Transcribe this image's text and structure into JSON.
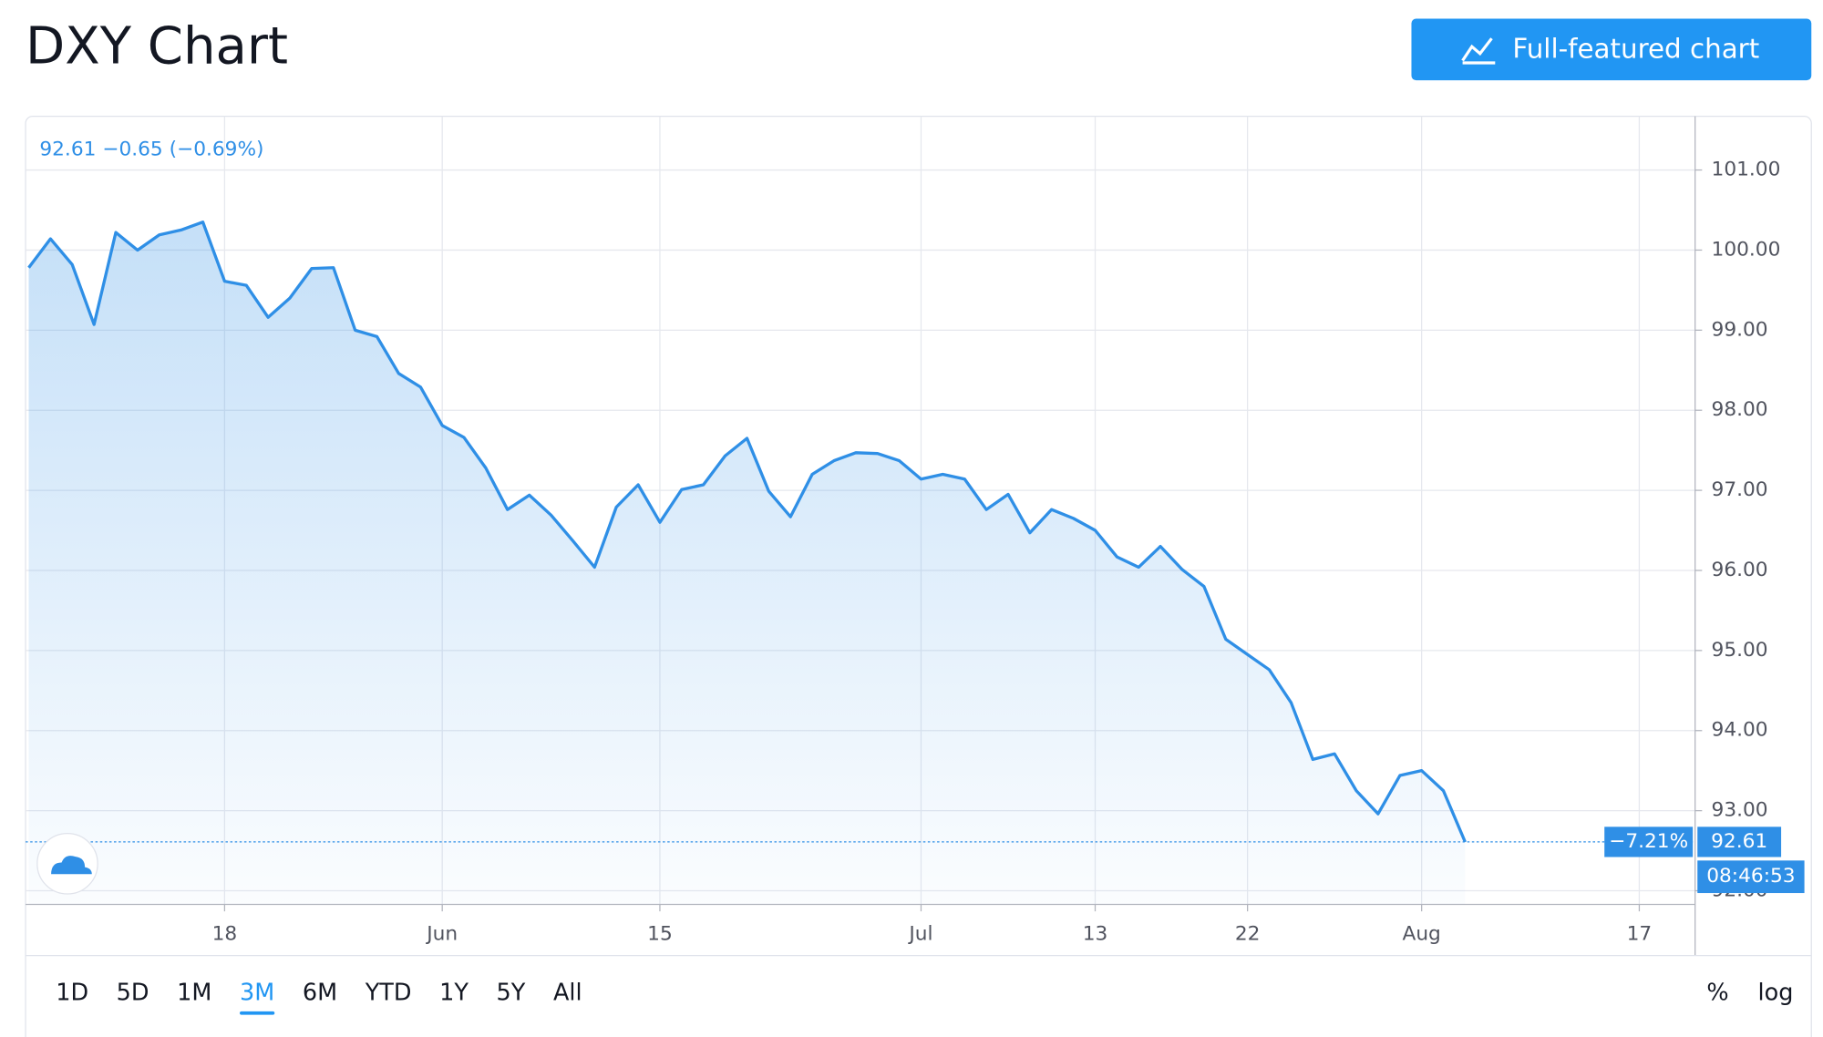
{
  "header": {
    "title": "DXY Chart",
    "button": "Full-featured chart"
  },
  "chart_data": {
    "type": "area",
    "legend_text": "92.61 −0.65 (−0.69%)",
    "categories": [
      null,
      null,
      null,
      null,
      null,
      null,
      null,
      null,
      null,
      "18",
      null,
      null,
      null,
      null,
      null,
      null,
      null,
      null,
      null,
      "Jun",
      null,
      null,
      null,
      null,
      null,
      null,
      null,
      null,
      null,
      "15",
      null,
      null,
      null,
      null,
      null,
      null,
      null,
      null,
      null,
      null,
      null,
      "Jul",
      null,
      null,
      null,
      null,
      null,
      null,
      null,
      "13",
      null,
      null,
      null,
      null,
      null,
      null,
      "22",
      null,
      null,
      null,
      null,
      null,
      null,
      null,
      "Aug",
      null,
      null,
      null,
      null,
      null,
      null,
      null,
      null,
      null,
      "17"
    ],
    "values": [
      99.78,
      100.14,
      99.82,
      99.07,
      100.22,
      100.0,
      100.19,
      100.25,
      100.35,
      99.61,
      99.56,
      99.16,
      99.4,
      99.77,
      99.78,
      99.0,
      98.92,
      98.46,
      98.29,
      97.81,
      97.66,
      97.28,
      96.76,
      96.94,
      96.69,
      96.37,
      96.04,
      96.79,
      97.07,
      96.6,
      97.01,
      97.07,
      97.43,
      97.65,
      96.99,
      96.67,
      97.2,
      97.37,
      97.47,
      97.46,
      97.37,
      97.14,
      97.2,
      97.14,
      96.76,
      96.95,
      96.47,
      96.76,
      96.65,
      96.5,
      96.17,
      96.04,
      96.3,
      96.01,
      95.8,
      95.14,
      94.95,
      94.76,
      94.35,
      93.64,
      93.71,
      93.25,
      92.96,
      93.44,
      93.5,
      93.25,
      92.61,
      null,
      null,
      null,
      null,
      null,
      null,
      null,
      null
    ],
    "color": "#2f8fe6",
    "ylim": [
      91.83,
      101.67
    ],
    "yticks": [
      {
        "value": 92,
        "label": "92.00"
      },
      {
        "value": 93,
        "label": "93.00"
      },
      {
        "value": 94,
        "label": "94.00"
      },
      {
        "value": 95,
        "label": "95.00"
      },
      {
        "value": 96,
        "label": "96.00"
      },
      {
        "value": 97,
        "label": "97.00"
      },
      {
        "value": 98,
        "label": "98.00"
      },
      {
        "value": 99,
        "label": "99.00"
      },
      {
        "value": 100,
        "label": "100.00"
      },
      {
        "value": 101,
        "label": "101.00"
      }
    ],
    "grid": true,
    "change_label": "−7.21%",
    "countdown": "08:46:53"
  },
  "toolbar": {
    "ranges": [
      "1D",
      "5D",
      "1M",
      "3M",
      "6M",
      "YTD",
      "1Y",
      "5Y",
      "All"
    ],
    "active_range": "3M",
    "options": [
      "%",
      "log"
    ]
  }
}
